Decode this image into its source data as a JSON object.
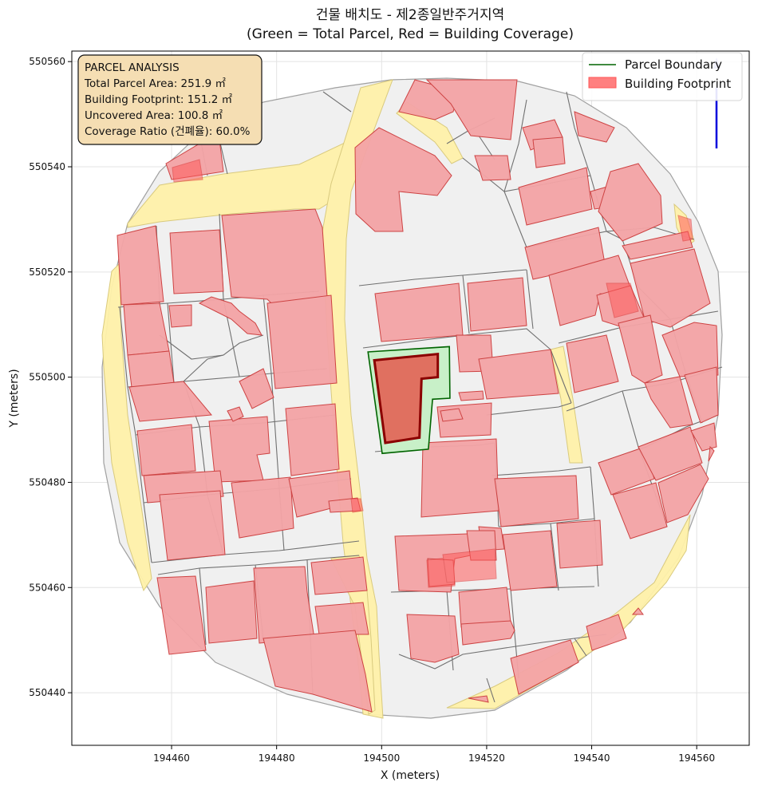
{
  "figure": {
    "title_line1": "건물 배치도 - 제2종일반주거지역",
    "title_line2": "(Green = Total Parcel, Red = Building Coverage)"
  },
  "axes": {
    "xlabel": "X (meters)",
    "ylabel": "Y (meters)",
    "x_ticks": [
      "194460",
      "194480",
      "194500",
      "194520",
      "194540",
      "194560"
    ],
    "y_ticks": [
      "550440",
      "550460",
      "550480",
      "550500",
      "550520",
      "550540",
      "550560"
    ]
  },
  "legend": {
    "position": "top-right",
    "items": [
      {
        "label": "Parcel Boundary",
        "color": "#006400"
      },
      {
        "label": "Building Footprint",
        "color": "#ff7f7f"
      }
    ]
  },
  "info_box": {
    "title": "PARCEL ANALYSIS",
    "total_area": "Total Parcel Area: 251.9 ㎡",
    "footprint": "Building Footprint: 151.2 ㎡",
    "uncovered": "Uncovered Area: 100.8 ㎡",
    "coverage": "Coverage Ratio (건폐율): 60.0%"
  },
  "colors": {
    "parcel_fill": "#c8f0c8",
    "parcel_edge": "#006400",
    "building_fill": "#f4a4a6",
    "target_building": "#e07060",
    "road": "#fff2aa",
    "context_parcel": "#f0f0f0",
    "north_arrow": "#0000dd"
  },
  "chart_data": {
    "type": "map",
    "xlim": [
      194441,
      194570
    ],
    "ylim": [
      550430,
      550562
    ],
    "grid": true,
    "target_parcel": [
      [
        194497.4,
        550504.8
      ],
      [
        194512.9,
        550505.8
      ],
      [
        194513,
        550496
      ],
      [
        194509.7,
        550495.8
      ],
      [
        194508.9,
        550486.3
      ],
      [
        194500.1,
        550485.5
      ]
    ],
    "target_building": [
      [
        194498.6,
        550503.2
      ],
      [
        194510.7,
        550504.4
      ],
      [
        194510.7,
        550500
      ],
      [
        194507.6,
        550499.7
      ],
      [
        194507.2,
        550488.5
      ],
      [
        194500.7,
        550487.5
      ]
    ],
    "analysis": {
      "total_parcel_area_m2": 251.9,
      "building_footprint_m2": 151.2,
      "uncovered_area_m2": 100.8,
      "coverage_ratio_pct": 60.0
    }
  }
}
